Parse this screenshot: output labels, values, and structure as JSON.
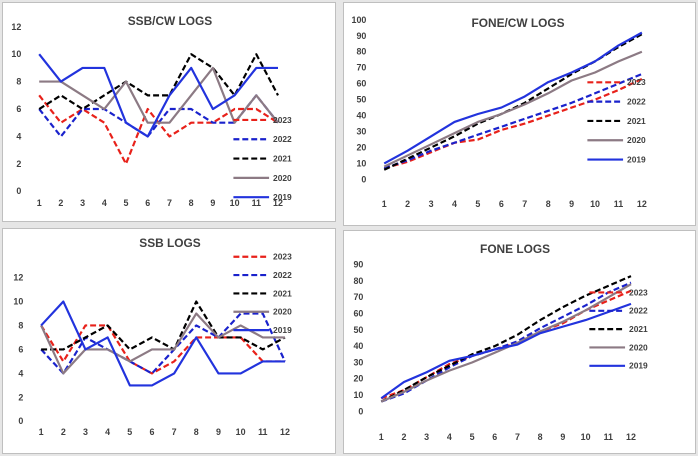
{
  "chart_data": [
    {
      "type": "line",
      "title": "SSB/CW LOGS",
      "categories": [
        "1",
        "2",
        "3",
        "4",
        "5",
        "6",
        "7",
        "8",
        "9",
        "10",
        "11",
        "12"
      ],
      "ylim": [
        0,
        12
      ],
      "yticks": [
        "0",
        "2",
        "4",
        "6",
        "8",
        "10",
        "12"
      ],
      "grid": false,
      "legend_position": "right",
      "series": [
        {
          "name": "2023",
          "color": "#e8211a",
          "dash": "dashed",
          "values": [
            7,
            5,
            6,
            5,
            2,
            6,
            4,
            5,
            5,
            6,
            6,
            5
          ]
        },
        {
          "name": "2022",
          "color": "#1a22cc",
          "dash": "dashed",
          "values": [
            6,
            4,
            6,
            6,
            5,
            4,
            6,
            6,
            5,
            5,
            7,
            5
          ]
        },
        {
          "name": "2021",
          "color": "#000000",
          "dash": "dashed",
          "values": [
            6,
            7,
            6,
            7,
            8,
            7,
            7,
            10,
            9,
            7,
            10,
            7
          ]
        },
        {
          "name": "2020",
          "color": "#8c7a84",
          "dash": "solid",
          "values": [
            8,
            8,
            7,
            6,
            8,
            5,
            5,
            7,
            9,
            5,
            7,
            5
          ]
        },
        {
          "name": "2019",
          "color": "#2233dd",
          "dash": "solid",
          "values": [
            10,
            8,
            9,
            9,
            5,
            4,
            7,
            9,
            6,
            7,
            9,
            9
          ]
        }
      ]
    },
    {
      "type": "line",
      "title": "FONE/CW LOGS",
      "categories": [
        "1",
        "2",
        "3",
        "4",
        "5",
        "6",
        "7",
        "8",
        "9",
        "10",
        "11",
        "12"
      ],
      "ylim": [
        0,
        100
      ],
      "yticks": [
        "0",
        "10",
        "20",
        "30",
        "40",
        "50",
        "60",
        "70",
        "80",
        "90",
        "100"
      ],
      "grid": false,
      "legend_position": "right",
      "series": [
        {
          "name": "2023",
          "color": "#e8211a",
          "dash": "dashed",
          "values": [
            7,
            11,
            17,
            23,
            25,
            31,
            35,
            40,
            45,
            50,
            56,
            63
          ]
        },
        {
          "name": "2022",
          "color": "#1a22cc",
          "dash": "dashed",
          "values": [
            7,
            12,
            18,
            23,
            28,
            33,
            38,
            43,
            48,
            54,
            60,
            66
          ]
        },
        {
          "name": "2021",
          "color": "#000000",
          "dash": "dashed",
          "values": [
            6,
            13,
            20,
            27,
            35,
            41,
            48,
            57,
            66,
            74,
            83,
            91
          ]
        },
        {
          "name": "2020",
          "color": "#8c7a84",
          "dash": "solid",
          "values": [
            8,
            15,
            22,
            29,
            36,
            41,
            47,
            54,
            62,
            67,
            74,
            80
          ]
        },
        {
          "name": "2019",
          "color": "#2233dd",
          "dash": "solid",
          "values": [
            10,
            18,
            27,
            36,
            41,
            45,
            52,
            61,
            67,
            74,
            84,
            92
          ]
        }
      ]
    },
    {
      "type": "line",
      "title": "SSB LOGS",
      "categories": [
        "1",
        "2",
        "3",
        "4",
        "5",
        "6",
        "7",
        "8",
        "9",
        "10",
        "11",
        "12"
      ],
      "ylim": [
        0,
        12
      ],
      "yticks": [
        "0",
        "2",
        "4",
        "6",
        "8",
        "10",
        "12"
      ],
      "grid": false,
      "legend_position": "right",
      "series": [
        {
          "name": "2023",
          "color": "#e8211a",
          "dash": "dashed",
          "values": [
            8,
            5,
            8,
            8,
            5,
            4,
            5,
            7,
            7,
            7,
            5,
            5
          ]
        },
        {
          "name": "2022",
          "color": "#1a22cc",
          "dash": "dashed",
          "values": [
            6,
            4,
            7,
            6,
            5,
            4,
            6,
            8,
            7,
            9,
            9,
            5
          ]
        },
        {
          "name": "2021",
          "color": "#000000",
          "dash": "dashed",
          "values": [
            6,
            6,
            7,
            8,
            6,
            7,
            6,
            10,
            7,
            7,
            6,
            7
          ]
        },
        {
          "name": "2020",
          "color": "#8c7a84",
          "dash": "solid",
          "values": [
            8,
            4,
            6,
            6,
            5,
            6,
            6,
            9,
            7,
            8,
            7,
            7
          ]
        },
        {
          "name": "2019",
          "color": "#2233dd",
          "dash": "solid",
          "values": [
            8,
            10,
            6,
            7,
            3,
            3,
            4,
            7,
            4,
            4,
            5,
            5
          ]
        }
      ]
    },
    {
      "type": "line",
      "title": "FONE LOGS",
      "categories": [
        "1",
        "2",
        "3",
        "4",
        "5",
        "6",
        "7",
        "8",
        "9",
        "10",
        "11",
        "12"
      ],
      "ylim": [
        0,
        90
      ],
      "yticks": [
        "0",
        "10",
        "20",
        "30",
        "40",
        "50",
        "60",
        "70",
        "80",
        "90"
      ],
      "grid": false,
      "legend_position": "right",
      "series": [
        {
          "name": "2023",
          "color": "#e8211a",
          "dash": "dashed",
          "values": [
            8,
            13,
            21,
            29,
            34,
            38,
            42,
            49,
            54,
            62,
            68,
            74
          ]
        },
        {
          "name": "2022",
          "color": "#1a22cc",
          "dash": "dashed",
          "values": [
            6,
            11,
            19,
            27,
            34,
            38,
            43,
            51,
            58,
            65,
            73,
            79
          ]
        },
        {
          "name": "2021",
          "color": "#000000",
          "dash": "dashed",
          "values": [
            6,
            13,
            21,
            28,
            35,
            40,
            47,
            56,
            64,
            71,
            77,
            83
          ]
        },
        {
          "name": "2020",
          "color": "#8c7a84",
          "dash": "solid",
          "values": [
            6,
            12,
            19,
            25,
            30,
            36,
            42,
            49,
            55,
            62,
            70,
            78
          ]
        },
        {
          "name": "2019",
          "color": "#2233dd",
          "dash": "solid",
          "values": [
            8,
            18,
            24,
            31,
            34,
            38,
            41,
            48,
            52,
            56,
            61,
            66
          ]
        }
      ]
    }
  ]
}
